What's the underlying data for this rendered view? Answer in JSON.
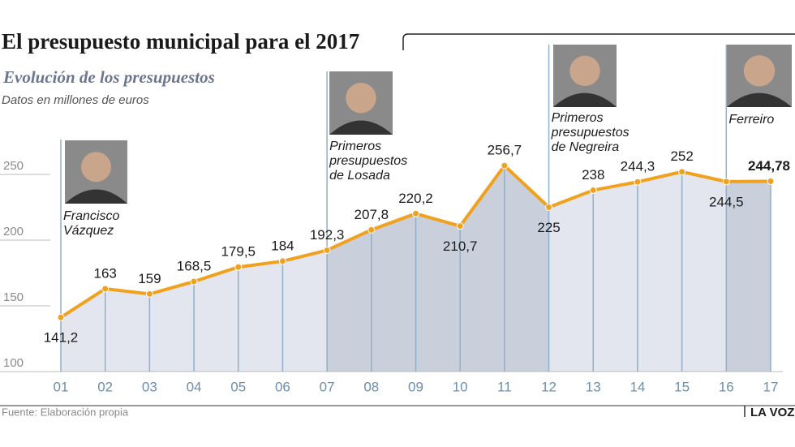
{
  "chart_data": {
    "type": "line",
    "title": "El presupuesto municipal para el 2017",
    "subtitle": "Evolución de los presupuestos",
    "y_label": "Datos en millones de euros",
    "source": "Fuente: Elaboración propia",
    "brand": "LA VOZ",
    "categories": [
      "01",
      "02",
      "03",
      "04",
      "05",
      "06",
      "07",
      "08",
      "09",
      "10",
      "11",
      "12",
      "13",
      "14",
      "15",
      "16",
      "17"
    ],
    "values": [
      141.2,
      163,
      159,
      168.5,
      179.5,
      184,
      192.3,
      207.8,
      220.2,
      210.7,
      256.7,
      225,
      238,
      244.3,
      252,
      244.5,
      244.78
    ],
    "value_labels": [
      "141,2",
      "163",
      "159",
      "168,5",
      "179,5",
      "184",
      "192,3",
      "207,8",
      "220,2",
      "210,7",
      "256,7",
      "225",
      "238",
      "244,3",
      "252",
      "244,5",
      "244,78"
    ],
    "color": "#f0a11e",
    "ylim": [
      100,
      260
    ],
    "yticks": [
      100,
      150,
      200,
      250
    ],
    "annotations": [
      {
        "lines": [
          "Francisco",
          "Vázquez"
        ]
      },
      {
        "lines": [
          "Primeros",
          "presupuestos",
          "de Losada"
        ]
      },
      {
        "lines": [
          "Primeros",
          "presupuestos",
          "de Negreira"
        ]
      },
      {
        "lines": [
          "Ferreiro"
        ]
      }
    ]
  }
}
